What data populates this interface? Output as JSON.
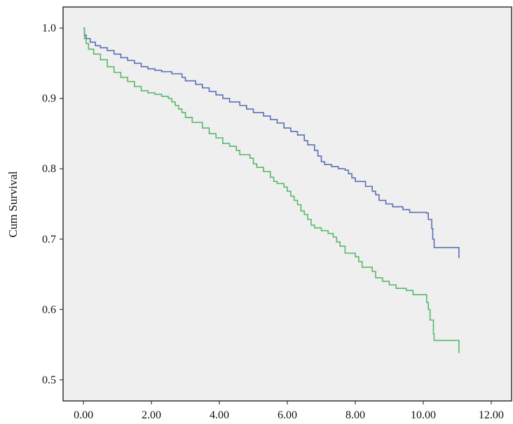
{
  "chart_data": {
    "type": "line",
    "step": true,
    "title": "",
    "xlabel": "",
    "ylabel": "Cum Survival",
    "xlim": [
      -0.6,
      12.6
    ],
    "ylim": [
      0.47,
      1.03
    ],
    "xticks": [
      0,
      2,
      4,
      6,
      8,
      10,
      12
    ],
    "xtick_labels": [
      "0.00",
      "2.00",
      "4.00",
      "6.00",
      "8.00",
      "10.00",
      "12.00"
    ],
    "yticks": [
      0.5,
      0.6,
      0.7,
      0.8,
      0.9,
      1.0
    ],
    "ytick_labels": [
      "0.5",
      "0.6",
      "0.7",
      "0.8",
      "0.9",
      "1.0"
    ],
    "grid": false,
    "legend": "none",
    "plot_background": "#efefef",
    "series": [
      {
        "color": "#5b6fb5",
        "points": [
          [
            0,
            1.0
          ],
          [
            0.03,
            0.99
          ],
          [
            0.08,
            0.985
          ],
          [
            0.2,
            0.98
          ],
          [
            0.35,
            0.975
          ],
          [
            0.5,
            0.972
          ],
          [
            0.7,
            0.968
          ],
          [
            0.9,
            0.963
          ],
          [
            1.1,
            0.958
          ],
          [
            1.3,
            0.954
          ],
          [
            1.5,
            0.95
          ],
          [
            1.7,
            0.945
          ],
          [
            1.9,
            0.942
          ],
          [
            2.1,
            0.94
          ],
          [
            2.3,
            0.938
          ],
          [
            2.6,
            0.935
          ],
          [
            2.9,
            0.93
          ],
          [
            3.0,
            0.925
          ],
          [
            3.3,
            0.92
          ],
          [
            3.5,
            0.915
          ],
          [
            3.7,
            0.91
          ],
          [
            3.9,
            0.905
          ],
          [
            4.1,
            0.9
          ],
          [
            4.3,
            0.895
          ],
          [
            4.6,
            0.89
          ],
          [
            4.8,
            0.885
          ],
          [
            5.0,
            0.88
          ],
          [
            5.3,
            0.875
          ],
          [
            5.5,
            0.87
          ],
          [
            5.7,
            0.865
          ],
          [
            5.9,
            0.858
          ],
          [
            6.1,
            0.853
          ],
          [
            6.3,
            0.848
          ],
          [
            6.5,
            0.84
          ],
          [
            6.6,
            0.834
          ],
          [
            6.8,
            0.826
          ],
          [
            6.9,
            0.818
          ],
          [
            7.0,
            0.81
          ],
          [
            7.1,
            0.806
          ],
          [
            7.3,
            0.803
          ],
          [
            7.5,
            0.8
          ],
          [
            7.7,
            0.798
          ],
          [
            7.8,
            0.793
          ],
          [
            7.9,
            0.787
          ],
          [
            8.0,
            0.782
          ],
          [
            8.3,
            0.775
          ],
          [
            8.5,
            0.768
          ],
          [
            8.6,
            0.763
          ],
          [
            8.7,
            0.755
          ],
          [
            8.9,
            0.75
          ],
          [
            9.1,
            0.746
          ],
          [
            9.4,
            0.742
          ],
          [
            9.6,
            0.738
          ],
          [
            10.1,
            0.737
          ],
          [
            10.15,
            0.728
          ],
          [
            10.25,
            0.715
          ],
          [
            10.28,
            0.7
          ],
          [
            10.32,
            0.688
          ],
          [
            11.05,
            0.688
          ],
          [
            11.05,
            0.673
          ]
        ]
      },
      {
        "color": "#58b86a",
        "points": [
          [
            0,
            1.0
          ],
          [
            0.03,
            0.985
          ],
          [
            0.08,
            0.978
          ],
          [
            0.15,
            0.97
          ],
          [
            0.3,
            0.963
          ],
          [
            0.5,
            0.955
          ],
          [
            0.7,
            0.945
          ],
          [
            0.9,
            0.937
          ],
          [
            1.1,
            0.93
          ],
          [
            1.3,
            0.924
          ],
          [
            1.5,
            0.917
          ],
          [
            1.7,
            0.911
          ],
          [
            1.9,
            0.908
          ],
          [
            2.1,
            0.906
          ],
          [
            2.3,
            0.903
          ],
          [
            2.5,
            0.9
          ],
          [
            2.6,
            0.895
          ],
          [
            2.7,
            0.89
          ],
          [
            2.8,
            0.885
          ],
          [
            2.9,
            0.88
          ],
          [
            3.0,
            0.873
          ],
          [
            3.2,
            0.866
          ],
          [
            3.5,
            0.858
          ],
          [
            3.7,
            0.85
          ],
          [
            3.9,
            0.844
          ],
          [
            4.1,
            0.836
          ],
          [
            4.3,
            0.832
          ],
          [
            4.5,
            0.826
          ],
          [
            4.6,
            0.82
          ],
          [
            4.9,
            0.815
          ],
          [
            5.0,
            0.807
          ],
          [
            5.1,
            0.802
          ],
          [
            5.3,
            0.796
          ],
          [
            5.5,
            0.788
          ],
          [
            5.6,
            0.782
          ],
          [
            5.7,
            0.779
          ],
          [
            5.9,
            0.774
          ],
          [
            6.0,
            0.768
          ],
          [
            6.1,
            0.761
          ],
          [
            6.2,
            0.755
          ],
          [
            6.3,
            0.749
          ],
          [
            6.4,
            0.74
          ],
          [
            6.5,
            0.735
          ],
          [
            6.6,
            0.728
          ],
          [
            6.7,
            0.72
          ],
          [
            6.8,
            0.716
          ],
          [
            7.0,
            0.712
          ],
          [
            7.2,
            0.708
          ],
          [
            7.35,
            0.703
          ],
          [
            7.45,
            0.696
          ],
          [
            7.55,
            0.69
          ],
          [
            7.7,
            0.68
          ],
          [
            8.0,
            0.675
          ],
          [
            8.1,
            0.668
          ],
          [
            8.2,
            0.66
          ],
          [
            8.5,
            0.654
          ],
          [
            8.6,
            0.645
          ],
          [
            8.8,
            0.64
          ],
          [
            9.0,
            0.635
          ],
          [
            9.2,
            0.63
          ],
          [
            9.5,
            0.627
          ],
          [
            9.7,
            0.621
          ],
          [
            10.1,
            0.61
          ],
          [
            10.15,
            0.6
          ],
          [
            10.2,
            0.585
          ],
          [
            10.3,
            0.565
          ],
          [
            10.32,
            0.556
          ],
          [
            11.05,
            0.556
          ],
          [
            11.05,
            0.538
          ]
        ]
      }
    ]
  }
}
